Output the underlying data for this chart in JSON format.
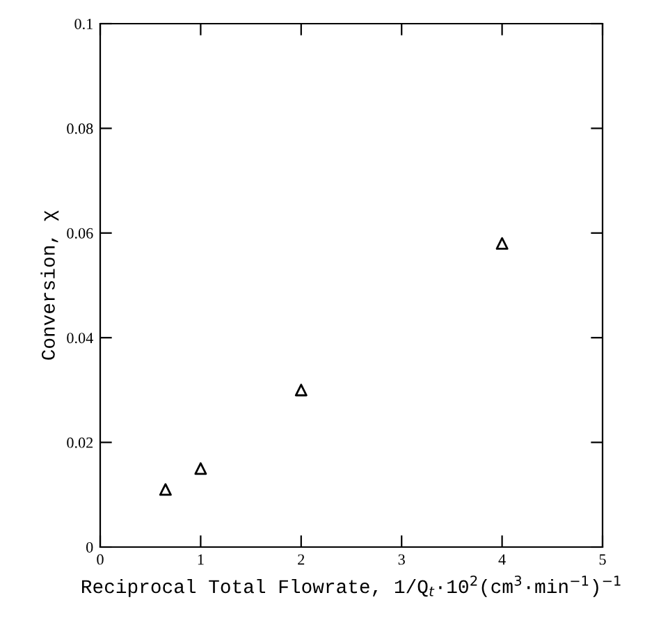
{
  "chart_data": {
    "type": "scatter",
    "xlabel": "Reciprocal Total Flowrate, 1/Q$_{t}$·10$^{2}$(cm$^{3}$·min$^{−1}$)$^{−1}$",
    "ylabel": "Conversion, χ",
    "x": [
      0.65,
      1.0,
      2.0,
      4.0
    ],
    "series": [
      {
        "color": "#000000",
        "values": [
          0.011,
          0.015,
          0.03,
          0.058
        ]
      }
    ],
    "marker": "triangle",
    "xlim": [
      0,
      5
    ],
    "xticks": [
      0,
      1,
      2,
      3,
      4,
      5
    ],
    "ylim": [
      0,
      0.1
    ],
    "yticks": [
      0,
      0.02,
      0.04,
      0.06,
      0.08,
      0.1
    ],
    "grid": false,
    "legend": false
  }
}
